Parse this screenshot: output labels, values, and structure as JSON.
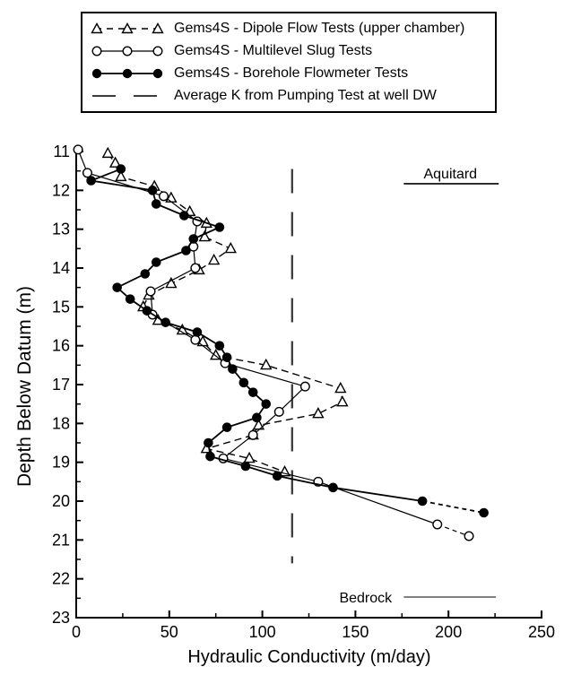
{
  "page": {
    "background": "#ffffff",
    "text_color": "#000000"
  },
  "legend": {
    "border_color": "#000000"
  },
  "chart_data": {
    "type": "line",
    "orientation": "depth-profile",
    "title": "",
    "xlabel": "Hydraulic Conductivity (m/day)",
    "ylabel": "Depth Below Datum (m)",
    "xlim": [
      0,
      250
    ],
    "ylim": [
      11,
      23
    ],
    "y_inverted": true,
    "grid": "off",
    "x_major_ticks": [
      0,
      50,
      100,
      150,
      200,
      250
    ],
    "x_minor_ticks": [
      25,
      75,
      125,
      175,
      225
    ],
    "y_major_ticks": [
      11,
      12,
      13,
      14,
      15,
      16,
      17,
      18,
      19,
      20,
      21,
      22,
      23
    ],
    "y_minor_ticks": [
      11.5,
      12.5,
      13.5,
      14.5,
      15.5,
      16.5,
      17.5,
      18.5,
      19.5,
      20.5,
      21.5,
      22.5
    ],
    "series": [
      {
        "name": "Gems4S - Dipole Flow Tests (upper chamber)",
        "marker": "triangle-open",
        "line_style": "dashed",
        "tail_dashed": false,
        "points_k_depth": [
          [
            17,
            11.05
          ],
          [
            21,
            11.3
          ],
          [
            24,
            11.65
          ],
          [
            42,
            11.9
          ],
          [
            51,
            12.2
          ],
          [
            61,
            12.55
          ],
          [
            70,
            12.85
          ],
          [
            69,
            13.2
          ],
          [
            83,
            13.5
          ],
          [
            74,
            13.8
          ],
          [
            66,
            14.05
          ],
          [
            51,
            14.4
          ],
          [
            39,
            14.7
          ],
          [
            36,
            15.0
          ],
          [
            44,
            15.35
          ],
          [
            57,
            15.6
          ],
          [
            68,
            15.9
          ],
          [
            75,
            16.25
          ],
          [
            102,
            16.5
          ],
          [
            142,
            17.1
          ],
          [
            143,
            17.45
          ],
          [
            130,
            17.75
          ],
          [
            98,
            18.05
          ],
          [
            95,
            18.3
          ],
          [
            70,
            18.65
          ],
          [
            93,
            18.9
          ],
          [
            112,
            19.25
          ]
        ]
      },
      {
        "name": "Gems4S - Multilevel Slug Tests",
        "marker": "circle-open",
        "line_style": "solid",
        "tail_dashed": true,
        "points_k_depth": [
          [
            1,
            10.95
          ],
          [
            6,
            11.55
          ],
          [
            47,
            12.15
          ],
          [
            65,
            12.8
          ],
          [
            63,
            13.45
          ],
          [
            64,
            14.0
          ],
          [
            40,
            14.6
          ],
          [
            41,
            15.2
          ],
          [
            64,
            15.85
          ],
          [
            80,
            16.45
          ],
          [
            123,
            17.05
          ],
          [
            109,
            17.7
          ],
          [
            95,
            18.3
          ],
          [
            79,
            18.9
          ],
          [
            130,
            19.5
          ],
          [
            194,
            20.6
          ],
          [
            211,
            20.9
          ]
        ]
      },
      {
        "name": "Gems4S - Borehole Flowmeter Tests",
        "marker": "circle-filled",
        "line_style": "solid",
        "tail_dashed": true,
        "points_k_depth": [
          [
            24,
            11.45
          ],
          [
            8,
            11.75
          ],
          [
            41,
            12.0
          ],
          [
            43,
            12.35
          ],
          [
            58,
            12.65
          ],
          [
            77,
            12.95
          ],
          [
            63,
            13.25
          ],
          [
            59,
            13.55
          ],
          [
            43,
            13.85
          ],
          [
            37,
            14.15
          ],
          [
            22,
            14.5
          ],
          [
            29,
            14.8
          ],
          [
            38,
            15.1
          ],
          [
            48,
            15.4
          ],
          [
            65,
            15.65
          ],
          [
            77,
            16.0
          ],
          [
            81,
            16.3
          ],
          [
            84,
            16.6
          ],
          [
            90,
            16.95
          ],
          [
            95,
            17.2
          ],
          [
            102,
            17.5
          ],
          [
            97,
            17.85
          ],
          [
            81,
            18.1
          ],
          [
            71,
            18.5
          ],
          [
            72,
            18.85
          ],
          [
            91,
            19.1
          ],
          [
            108,
            19.35
          ],
          [
            138,
            19.65
          ],
          [
            186,
            20.0
          ],
          [
            219,
            20.3
          ]
        ]
      }
    ],
    "average_k_line": {
      "label": "Average K from Pumping Test at well DW",
      "k": 116,
      "depth_range": [
        11.45,
        21.6
      ],
      "color": "#3c3c3c"
    },
    "annotations": [
      {
        "id": "aquitard",
        "text": "Aquitard",
        "k": 201,
        "depth": 11.69,
        "line": {
          "k1": 176,
          "k2": 227,
          "depth": 11.83,
          "width": 1.6
        }
      },
      {
        "id": "bedrock",
        "text": "Bedrock",
        "k": 155.5,
        "depth": 22.61,
        "line": {
          "k1": 176,
          "k2": 225.5,
          "depth": 22.47,
          "width": 1.0
        }
      }
    ]
  }
}
